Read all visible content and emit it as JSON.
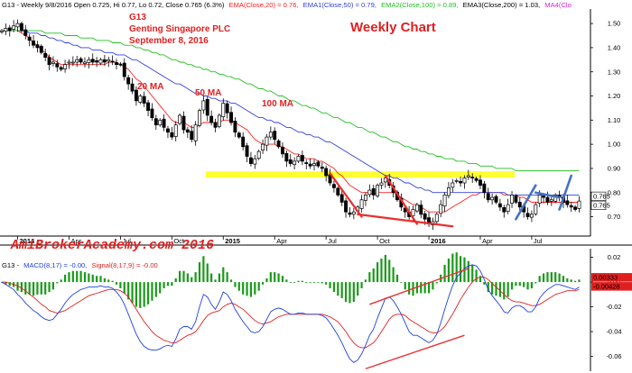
{
  "header": {
    "title": "G13 - Weekly 9/8/2016 Open 0.725, Hi 0.77, Lo 0.72, Close 0.765 (6.3%)",
    "ema20": "EMA(Close,20) = 0.76,",
    "ema50": "EMA1(Close,50) = 0.79,",
    "ema100": "EMA2(Close,100) = 0.89,",
    "ema200": "EMA3(Close,200) = 1.03,",
    "ma4": "MA4(Clo"
  },
  "annotations": {
    "symbol": "G13",
    "company": "Genting Singapore PLC",
    "date": "September 8, 2016",
    "chart_type": "Weekly Chart",
    "ma20": "20 MA",
    "ma50": "50 MA",
    "ma100": "100 MA",
    "watermark": "AmiBrokerAcademy.com  2016"
  },
  "macd_header": {
    "symbol": "G13 -",
    "macd": "MACD(8,17) = -0.00,",
    "signal": "Signal(8,17,9) = -0.00"
  },
  "colors": {
    "candle": "#000000",
    "ema20": "#ff2020",
    "ema50": "#3040e0",
    "ema100": "#20c020",
    "resistance": "#ffff33",
    "trend_red": "#e83030",
    "trend_blue": "#4472c4",
    "macd_line": "#2040e0",
    "signal_line": "#e02020",
    "histogram": "#1a9a1a"
  },
  "chart_data": [
    {
      "type": "candlestick",
      "title": "G13 - Weekly 9/8/2016",
      "ylim": [
        0.62,
        1.56
      ],
      "y_ticks": [
        0.7,
        0.8,
        0.9,
        1.0,
        1.1,
        1.2,
        1.3,
        1.4,
        1.5
      ],
      "y_tick_labels": [
        "0.70",
        "0.80",
        "0.90",
        "1.00",
        "1.10",
        "1.20",
        "1.30",
        "1.40",
        "1.50"
      ],
      "x_tick_labels": [
        "2014",
        "Apr",
        "Jul",
        "Oct",
        "2015",
        "Apr",
        "Jul",
        "Oct",
        "2016",
        "Apr",
        "Jul"
      ],
      "x_tick_weeks": [
        4,
        17,
        30,
        43,
        56,
        69,
        82,
        95,
        108,
        121,
        134
      ],
      "last_close_labels": [
        "0.765",
        "0.765"
      ],
      "last_close": 0.765,
      "closes": [
        1.47,
        1.48,
        1.47,
        1.49,
        1.5,
        1.47,
        1.45,
        1.43,
        1.41,
        1.4,
        1.38,
        1.36,
        1.33,
        1.34,
        1.32,
        1.31,
        1.33,
        1.34,
        1.34,
        1.35,
        1.34,
        1.34,
        1.35,
        1.34,
        1.34,
        1.35,
        1.34,
        1.35,
        1.34,
        1.33,
        1.33,
        1.28,
        1.25,
        1.22,
        1.18,
        1.2,
        1.17,
        1.14,
        1.11,
        1.08,
        1.1,
        1.07,
        1.05,
        1.03,
        1.08,
        1.12,
        1.06,
        1.05,
        1.02,
        1.08,
        1.14,
        1.18,
        1.12,
        1.09,
        1.07,
        1.12,
        1.17,
        1.13,
        1.09,
        1.05,
        1.03,
        0.99,
        0.95,
        0.92,
        0.94,
        0.97,
        1.0,
        1.03,
        1.05,
        1.02,
        0.99,
        0.96,
        0.93,
        0.92,
        0.93,
        0.95,
        0.93,
        0.92,
        0.91,
        0.92,
        0.91,
        0.9,
        0.87,
        0.84,
        0.82,
        0.79,
        0.76,
        0.72,
        0.71,
        0.72,
        0.74,
        0.77,
        0.79,
        0.81,
        0.79,
        0.83,
        0.84,
        0.86,
        0.83,
        0.8,
        0.77,
        0.74,
        0.72,
        0.7,
        0.73,
        0.75,
        0.71,
        0.69,
        0.67,
        0.68,
        0.71,
        0.75,
        0.79,
        0.82,
        0.84,
        0.85,
        0.84,
        0.86,
        0.87,
        0.86,
        0.85,
        0.83,
        0.8,
        0.77,
        0.78,
        0.76,
        0.74,
        0.72,
        0.75,
        0.79,
        0.76,
        0.74,
        0.72,
        0.7,
        0.71,
        0.75,
        0.79,
        0.78,
        0.76,
        0.77,
        0.79,
        0.78,
        0.76,
        0.75,
        0.74,
        0.73,
        0.765
      ],
      "series": [
        {
          "name": "EMA(Close,20)",
          "values": [
            1.47,
            1.47,
            1.47,
            1.47,
            1.47,
            1.46,
            1.45,
            1.44,
            1.42,
            1.41,
            1.39,
            1.38,
            1.36,
            1.35,
            1.34,
            1.33,
            1.33,
            1.33,
            1.33,
            1.33,
            1.33,
            1.33,
            1.33,
            1.33,
            1.33,
            1.33,
            1.33,
            1.34,
            1.34,
            1.34,
            1.33,
            1.32,
            1.31,
            1.29,
            1.27,
            1.26,
            1.24,
            1.22,
            1.2,
            1.18,
            1.16,
            1.14,
            1.12,
            1.1,
            1.09,
            1.09,
            1.09,
            1.08,
            1.07,
            1.07,
            1.08,
            1.09,
            1.09,
            1.09,
            1.09,
            1.09,
            1.1,
            1.1,
            1.1,
            1.09,
            1.08,
            1.07,
            1.06,
            1.04,
            1.02,
            1.01,
            1.0,
            1.0,
            1.0,
            1.0,
            0.99,
            0.99,
            0.98,
            0.97,
            0.96,
            0.96,
            0.95,
            0.94,
            0.94,
            0.94,
            0.93,
            0.93,
            0.92,
            0.91,
            0.9,
            0.88,
            0.87,
            0.85,
            0.83,
            0.82,
            0.81,
            0.8,
            0.8,
            0.8,
            0.79,
            0.8,
            0.8,
            0.8,
            0.8,
            0.8,
            0.79,
            0.78,
            0.77,
            0.76,
            0.75,
            0.75,
            0.74,
            0.73,
            0.72,
            0.72,
            0.72,
            0.72,
            0.72,
            0.73,
            0.74,
            0.75,
            0.76,
            0.77,
            0.78,
            0.79,
            0.79,
            0.8,
            0.8,
            0.8,
            0.8,
            0.8,
            0.8,
            0.79,
            0.79,
            0.79,
            0.79,
            0.78,
            0.78,
            0.77,
            0.76,
            0.76,
            0.76,
            0.76,
            0.76,
            0.76,
            0.76,
            0.76,
            0.76,
            0.76,
            0.76,
            0.76,
            0.76
          ]
        },
        {
          "name": "EMA1(Close,50)",
          "values": [
            1.47,
            1.47,
            1.47,
            1.47,
            1.47,
            1.47,
            1.47,
            1.46,
            1.46,
            1.46,
            1.45,
            1.45,
            1.44,
            1.44,
            1.43,
            1.43,
            1.42,
            1.42,
            1.41,
            1.41,
            1.4,
            1.4,
            1.4,
            1.39,
            1.39,
            1.39,
            1.38,
            1.38,
            1.38,
            1.37,
            1.37,
            1.37,
            1.36,
            1.35,
            1.35,
            1.34,
            1.33,
            1.32,
            1.31,
            1.3,
            1.29,
            1.28,
            1.27,
            1.26,
            1.25,
            1.25,
            1.24,
            1.23,
            1.22,
            1.21,
            1.21,
            1.2,
            1.2,
            1.19,
            1.19,
            1.18,
            1.18,
            1.18,
            1.17,
            1.17,
            1.16,
            1.15,
            1.14,
            1.13,
            1.12,
            1.11,
            1.11,
            1.1,
            1.1,
            1.09,
            1.09,
            1.08,
            1.07,
            1.07,
            1.06,
            1.05,
            1.05,
            1.04,
            1.04,
            1.03,
            1.03,
            1.02,
            1.01,
            1.01,
            1.0,
            0.99,
            0.98,
            0.97,
            0.96,
            0.95,
            0.94,
            0.93,
            0.92,
            0.91,
            0.9,
            0.89,
            0.88,
            0.87,
            0.87,
            0.86,
            0.86,
            0.85,
            0.84,
            0.84,
            0.83,
            0.82,
            0.82,
            0.81,
            0.81,
            0.8,
            0.8,
            0.8,
            0.8,
            0.8,
            0.8,
            0.8,
            0.8,
            0.8,
            0.8,
            0.8,
            0.8,
            0.8,
            0.8,
            0.8,
            0.8,
            0.8,
            0.8,
            0.8,
            0.79,
            0.79,
            0.79,
            0.79,
            0.79,
            0.79,
            0.79,
            0.79,
            0.79,
            0.79,
            0.79,
            0.79,
            0.79,
            0.79,
            0.79,
            0.79,
            0.79,
            0.79,
            0.79
          ]
        },
        {
          "name": "EMA2(Close,100)",
          "values": [
            1.47,
            1.47,
            1.47,
            1.47,
            1.47,
            1.47,
            1.47,
            1.47,
            1.47,
            1.47,
            1.47,
            1.46,
            1.46,
            1.46,
            1.46,
            1.46,
            1.45,
            1.45,
            1.45,
            1.45,
            1.44,
            1.44,
            1.44,
            1.44,
            1.43,
            1.43,
            1.43,
            1.43,
            1.42,
            1.42,
            1.42,
            1.41,
            1.41,
            1.41,
            1.4,
            1.4,
            1.39,
            1.39,
            1.38,
            1.38,
            1.37,
            1.37,
            1.36,
            1.35,
            1.35,
            1.34,
            1.34,
            1.33,
            1.33,
            1.32,
            1.32,
            1.31,
            1.31,
            1.3,
            1.3,
            1.29,
            1.29,
            1.28,
            1.28,
            1.27,
            1.27,
            1.26,
            1.25,
            1.25,
            1.24,
            1.23,
            1.23,
            1.22,
            1.22,
            1.21,
            1.2,
            1.2,
            1.19,
            1.18,
            1.18,
            1.17,
            1.16,
            1.16,
            1.15,
            1.15,
            1.14,
            1.13,
            1.13,
            1.12,
            1.11,
            1.11,
            1.1,
            1.09,
            1.09,
            1.08,
            1.07,
            1.07,
            1.06,
            1.05,
            1.05,
            1.04,
            1.03,
            1.03,
            1.02,
            1.01,
            1.01,
            1.0,
            0.99,
            0.99,
            0.98,
            0.98,
            0.97,
            0.97,
            0.96,
            0.96,
            0.95,
            0.95,
            0.94,
            0.94,
            0.94,
            0.93,
            0.93,
            0.93,
            0.92,
            0.92,
            0.92,
            0.91,
            0.91,
            0.91,
            0.91,
            0.9,
            0.9,
            0.9,
            0.9,
            0.9,
            0.89,
            0.89,
            0.89,
            0.89,
            0.89,
            0.89,
            0.89,
            0.89,
            0.89,
            0.89,
            0.89,
            0.89,
            0.89,
            0.89,
            0.89,
            0.89,
            0.89
          ]
        }
      ],
      "resistance_level": 0.875,
      "trendlines_red": [
        {
          "from": [
            83,
            0.88
          ],
          "to": [
            91,
            0.7
          ]
        },
        {
          "from": [
            97,
            0.87
          ],
          "to": [
            105,
            0.67
          ]
        },
        {
          "from": [
            90,
            0.71
          ],
          "to": [
            114,
            0.66
          ]
        }
      ],
      "trendlines_blue": [
        {
          "from": [
            130,
            0.69
          ],
          "to": [
            135,
            0.83
          ]
        },
        {
          "from": [
            135,
            0.8
          ],
          "to": [
            141,
            0.78
          ]
        },
        {
          "from": [
            141,
            0.73
          ],
          "to": [
            144,
            0.87
          ]
        }
      ]
    },
    {
      "type": "bar",
      "title": "G13 - MACD(8,17) = -0.00, Signal(8,17,9) = -0.00",
      "ylim": [
        -0.072,
        0.027
      ],
      "y_ticks": [
        0.02,
        0.0,
        -0.02,
        -0.04,
        -0.06
      ],
      "y_tick_labels": [
        "0.02",
        "0.00",
        "-0.02",
        "-0.04",
        "-0.06"
      ],
      "last_value_labels": [
        "0.00333",
        "-0.00428"
      ],
      "macd": [
        0.0,
        -0.002,
        -0.004,
        -0.006,
        -0.01,
        -0.013,
        -0.017,
        -0.02,
        -0.023,
        -0.025,
        -0.028,
        -0.03,
        -0.031,
        -0.03,
        -0.026,
        -0.022,
        -0.017,
        -0.013,
        -0.01,
        -0.008,
        -0.006,
        -0.005,
        -0.004,
        -0.004,
        -0.004,
        -0.003,
        -0.004,
        -0.004,
        -0.005,
        -0.008,
        -0.012,
        -0.018,
        -0.026,
        -0.034,
        -0.042,
        -0.048,
        -0.052,
        -0.054,
        -0.055,
        -0.055,
        -0.054,
        -0.052,
        -0.051,
        -0.052,
        -0.046,
        -0.038,
        -0.036,
        -0.036,
        -0.038,
        -0.032,
        -0.02,
        -0.01,
        -0.012,
        -0.018,
        -0.022,
        -0.016,
        -0.008,
        -0.01,
        -0.015,
        -0.022,
        -0.027,
        -0.032,
        -0.036,
        -0.04,
        -0.041,
        -0.04,
        -0.036,
        -0.03,
        -0.024,
        -0.022,
        -0.021,
        -0.022,
        -0.024,
        -0.026,
        -0.026,
        -0.025,
        -0.025,
        -0.026,
        -0.026,
        -0.026,
        -0.026,
        -0.027,
        -0.029,
        -0.033,
        -0.038,
        -0.043,
        -0.049,
        -0.056,
        -0.062,
        -0.065,
        -0.063,
        -0.058,
        -0.051,
        -0.043,
        -0.038,
        -0.029,
        -0.021,
        -0.013,
        -0.012,
        -0.015,
        -0.02,
        -0.026,
        -0.033,
        -0.04,
        -0.043,
        -0.043,
        -0.045,
        -0.047,
        -0.049,
        -0.047,
        -0.042,
        -0.033,
        -0.022,
        -0.012,
        -0.003,
        0.004,
        0.007,
        0.011,
        0.013,
        0.014,
        0.013,
        0.009,
        0.002,
        -0.006,
        -0.011,
        -0.015,
        -0.019,
        -0.024,
        -0.025,
        -0.021,
        -0.019,
        -0.019,
        -0.021,
        -0.024,
        -0.024,
        -0.02,
        -0.013,
        -0.009,
        -0.006,
        -0.004,
        -0.002,
        -0.002,
        -0.003,
        -0.004,
        -0.005,
        -0.006,
        -0.004
      ],
      "signal": [
        0.0,
        0.0,
        -0.001,
        -0.002,
        -0.003,
        -0.005,
        -0.007,
        -0.01,
        -0.012,
        -0.015,
        -0.018,
        -0.02,
        -0.023,
        -0.024,
        -0.025,
        -0.024,
        -0.023,
        -0.021,
        -0.019,
        -0.017,
        -0.015,
        -0.013,
        -0.011,
        -0.01,
        -0.009,
        -0.008,
        -0.007,
        -0.006,
        -0.006,
        -0.006,
        -0.007,
        -0.009,
        -0.012,
        -0.017,
        -0.022,
        -0.027,
        -0.032,
        -0.036,
        -0.04,
        -0.043,
        -0.045,
        -0.047,
        -0.048,
        -0.049,
        -0.049,
        -0.047,
        -0.045,
        -0.043,
        -0.042,
        -0.04,
        -0.036,
        -0.031,
        -0.027,
        -0.025,
        -0.024,
        -0.023,
        -0.02,
        -0.018,
        -0.017,
        -0.018,
        -0.02,
        -0.022,
        -0.025,
        -0.028,
        -0.031,
        -0.033,
        -0.034,
        -0.033,
        -0.032,
        -0.03,
        -0.028,
        -0.027,
        -0.026,
        -0.026,
        -0.026,
        -0.026,
        -0.026,
        -0.026,
        -0.026,
        -0.026,
        -0.026,
        -0.026,
        -0.027,
        -0.028,
        -0.03,
        -0.032,
        -0.036,
        -0.04,
        -0.045,
        -0.049,
        -0.052,
        -0.053,
        -0.053,
        -0.051,
        -0.049,
        -0.045,
        -0.04,
        -0.035,
        -0.03,
        -0.027,
        -0.026,
        -0.026,
        -0.027,
        -0.03,
        -0.032,
        -0.034,
        -0.036,
        -0.038,
        -0.04,
        -0.041,
        -0.041,
        -0.039,
        -0.036,
        -0.031,
        -0.026,
        -0.02,
        -0.014,
        -0.009,
        -0.004,
        0.0,
        0.003,
        0.004,
        0.004,
        0.002,
        -0.001,
        -0.004,
        -0.007,
        -0.01,
        -0.013,
        -0.015,
        -0.016,
        -0.016,
        -0.017,
        -0.018,
        -0.019,
        -0.019,
        -0.018,
        -0.016,
        -0.014,
        -0.012,
        -0.01,
        -0.009,
        -0.008,
        -0.007,
        -0.007,
        -0.007,
        -0.006
      ],
      "trendlines_red": [
        {
          "from": [
            93,
            -0.018
          ],
          "to": [
            118,
            0.011
          ]
        },
        {
          "from": [
            92,
            -0.07
          ],
          "to": [
            117,
            -0.043
          ]
        }
      ]
    }
  ]
}
